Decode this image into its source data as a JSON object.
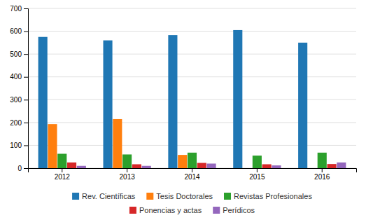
{
  "chart_data": {
    "type": "bar",
    "categories": [
      "2012",
      "2013",
      "2014",
      "2015",
      "2016"
    ],
    "series": [
      {
        "name": "Rev. Científicas",
        "values": [
          575,
          560,
          583,
          605,
          550
        ]
      },
      {
        "name": "Tesis Doctorales",
        "values": [
          193,
          215,
          58,
          0,
          0
        ]
      },
      {
        "name": "Revistas Profesionales",
        "values": [
          63,
          60,
          68,
          55,
          68
        ]
      },
      {
        "name": "Ponencias y actas",
        "values": [
          25,
          17,
          23,
          17,
          18
        ]
      },
      {
        "name": "Perídicos",
        "values": [
          10,
          10,
          20,
          12,
          25
        ]
      }
    ],
    "ylim": [
      0,
      700
    ],
    "yticks": [
      0,
      100,
      200,
      300,
      400,
      500,
      600,
      700
    ],
    "grid": true,
    "legend": "bottom"
  }
}
